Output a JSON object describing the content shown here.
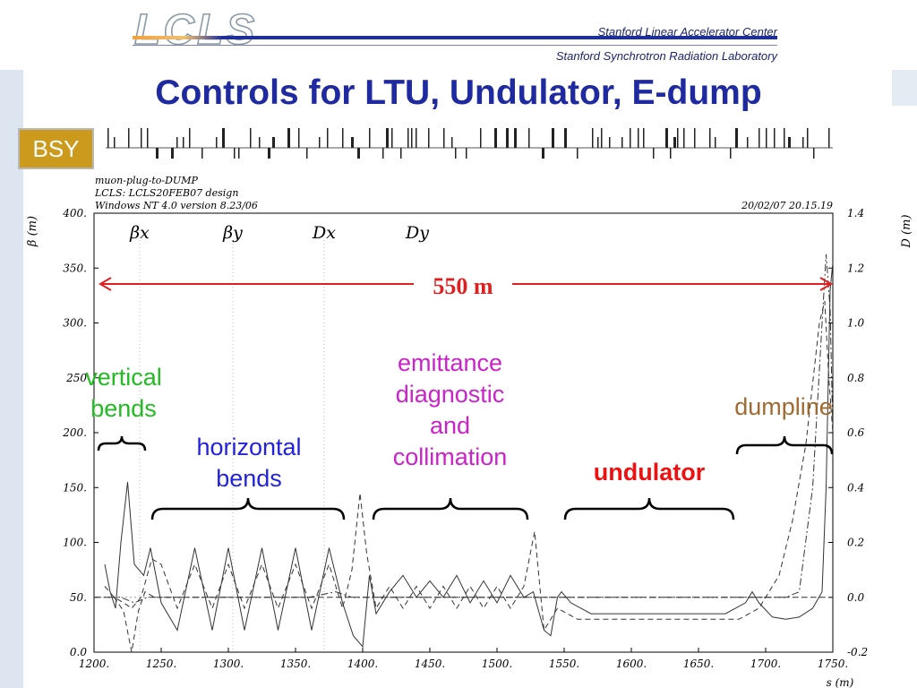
{
  "header": {
    "logo_text": "LCLS",
    "org_line1": "Stanford Linear Accelerator Center",
    "org_line2": "Stanford Synchrotron Radiation Laboratory"
  },
  "page_title": "Controls for LTU, Undulator, E-dump",
  "beamline_badge": "BSY",
  "plot_info": {
    "line1": "muon-plug-to-DUMP",
    "line2": "LCLS: LCLS20FEB07 design",
    "line3": "Windows NT 4.0 version 8.23/06",
    "timestamp": "20/02/07  20.15.19"
  },
  "annotations": {
    "span_label": "550 m",
    "vertical_bends": [
      "vertical",
      "bends"
    ],
    "horizontal_bends": [
      "horizontal",
      "bends"
    ],
    "emittance": [
      "emittance",
      "diagnostic",
      "and",
      "collimation"
    ],
    "undulator": "undulator",
    "dumpline": "dumpline"
  },
  "colors": {
    "title": "#1f2aa0",
    "badge": "#cc9a1c",
    "span_arrow": "#e02020",
    "vertical_bends": "#22bb22",
    "horizontal_bends": "#2222dd",
    "emittance": "#cc22cc",
    "undulator": "#ee1111",
    "dumpline": "#a06a30"
  },
  "chart_data": {
    "type": "line",
    "xlabel": "s (m)",
    "ylabel": "β (m)",
    "y2label": "D (m)",
    "xlim": [
      1200,
      1750
    ],
    "ylim": [
      0,
      400
    ],
    "y2lim": [
      -0.2,
      1.4
    ],
    "x_ticks": [
      "1200.",
      "1250.",
      "1300.",
      "1350.",
      "1400.",
      "1450.",
      "1500.",
      "1550.",
      "1600.",
      "1650.",
      "1700.",
      "1750."
    ],
    "y_ticks": [
      "0.0",
      "50.",
      "100.",
      "150.",
      "200.",
      "250",
      "300.",
      "350.",
      "400."
    ],
    "y2_ticks": [
      "-0.2",
      "0.0",
      "0.2",
      "0.4",
      "0.6",
      "0.8",
      "1.0",
      "1.2",
      "1.4"
    ],
    "legend": [
      "βx",
      "βy",
      "Dx",
      "Dy"
    ],
    "legend_placement": "top-left",
    "series": [
      {
        "name": "βx",
        "style": "solid",
        "x": [
          1208,
          1212,
          1216,
          1220,
          1225,
          1230,
          1237,
          1242,
          1250,
          1262,
          1275,
          1288,
          1300,
          1312,
          1325,
          1337,
          1350,
          1362,
          1375,
          1385,
          1393,
          1400,
          1405,
          1410,
          1420,
          1430,
          1440,
          1450,
          1460,
          1470,
          1480,
          1490,
          1500,
          1510,
          1520,
          1527,
          1535,
          1540,
          1545,
          1548,
          1555,
          1570,
          1585,
          1600,
          1615,
          1630,
          1645,
          1660,
          1670,
          1685,
          1690,
          1695,
          1705,
          1715,
          1725,
          1735,
          1742,
          1745,
          1748,
          1750
        ],
        "y": [
          80,
          55,
          40,
          100,
          155,
          80,
          70,
          95,
          45,
          20,
          95,
          20,
          95,
          20,
          95,
          20,
          95,
          20,
          95,
          45,
          15,
          5,
          70,
          35,
          55,
          70,
          50,
          65,
          50,
          70,
          45,
          65,
          45,
          70,
          50,
          55,
          20,
          15,
          50,
          55,
          45,
          35,
          35,
          35,
          35,
          35,
          35,
          35,
          35,
          45,
          55,
          45,
          32,
          30,
          32,
          40,
          55,
          150,
          330,
          355
        ]
      },
      {
        "name": "βy",
        "style": "dashed",
        "x": [
          1208,
          1215,
          1222,
          1228,
          1235,
          1243,
          1250,
          1262,
          1275,
          1288,
          1300,
          1312,
          1325,
          1337,
          1350,
          1362,
          1375,
          1385,
          1392,
          1398,
          1403,
          1410,
          1420,
          1430,
          1440,
          1450,
          1460,
          1470,
          1480,
          1490,
          1500,
          1510,
          1520,
          1528,
          1535,
          1545,
          1560,
          1575,
          1590,
          1605,
          1620,
          1635,
          1650,
          1665,
          1680,
          1695,
          1710,
          1720,
          1730,
          1740,
          1744,
          1747,
          1750
        ],
        "y": [
          60,
          50,
          45,
          40,
          50,
          85,
          80,
          40,
          80,
          40,
          80,
          40,
          80,
          40,
          80,
          40,
          80,
          40,
          75,
          145,
          90,
          40,
          60,
          40,
          60,
          40,
          60,
          40,
          60,
          40,
          60,
          40,
          60,
          110,
          20,
          40,
          30,
          30,
          30,
          30,
          30,
          30,
          30,
          30,
          30,
          40,
          70,
          120,
          190,
          300,
          320,
          250,
          200
        ]
      },
      {
        "name": "Dx",
        "style": "dashdot",
        "x": [
          1200,
          1210,
          1220,
          1230,
          1240,
          1280,
          1320,
          1360,
          1380,
          1392,
          1400,
          1410,
          1450,
          1500,
          1550,
          1600,
          1650,
          1700,
          1715,
          1725,
          1735,
          1742,
          1745,
          1748,
          1750
        ],
        "y": [
          0.0,
          0.0,
          0.0,
          -0.02,
          0.0,
          0.0,
          0.0,
          0.0,
          0.02,
          0.0,
          0.0,
          0.0,
          0.0,
          0.0,
          0.0,
          0.0,
          0.0,
          0.0,
          0.0,
          0.02,
          0.4,
          1.0,
          1.25,
          1.05,
          0.6
        ]
      },
      {
        "name": "Dy",
        "style": "dashed",
        "x": [
          1208,
          1215,
          1222,
          1228,
          1233,
          1238,
          1245,
          1260,
          1300,
          1400,
          1500,
          1600,
          1700,
          1750
        ],
        "y": [
          0.0,
          0.0,
          -0.05,
          -0.2,
          -0.05,
          0.02,
          0.0,
          0.0,
          0.0,
          0.0,
          0.0,
          0.0,
          0.0,
          0.0
        ]
      }
    ]
  }
}
